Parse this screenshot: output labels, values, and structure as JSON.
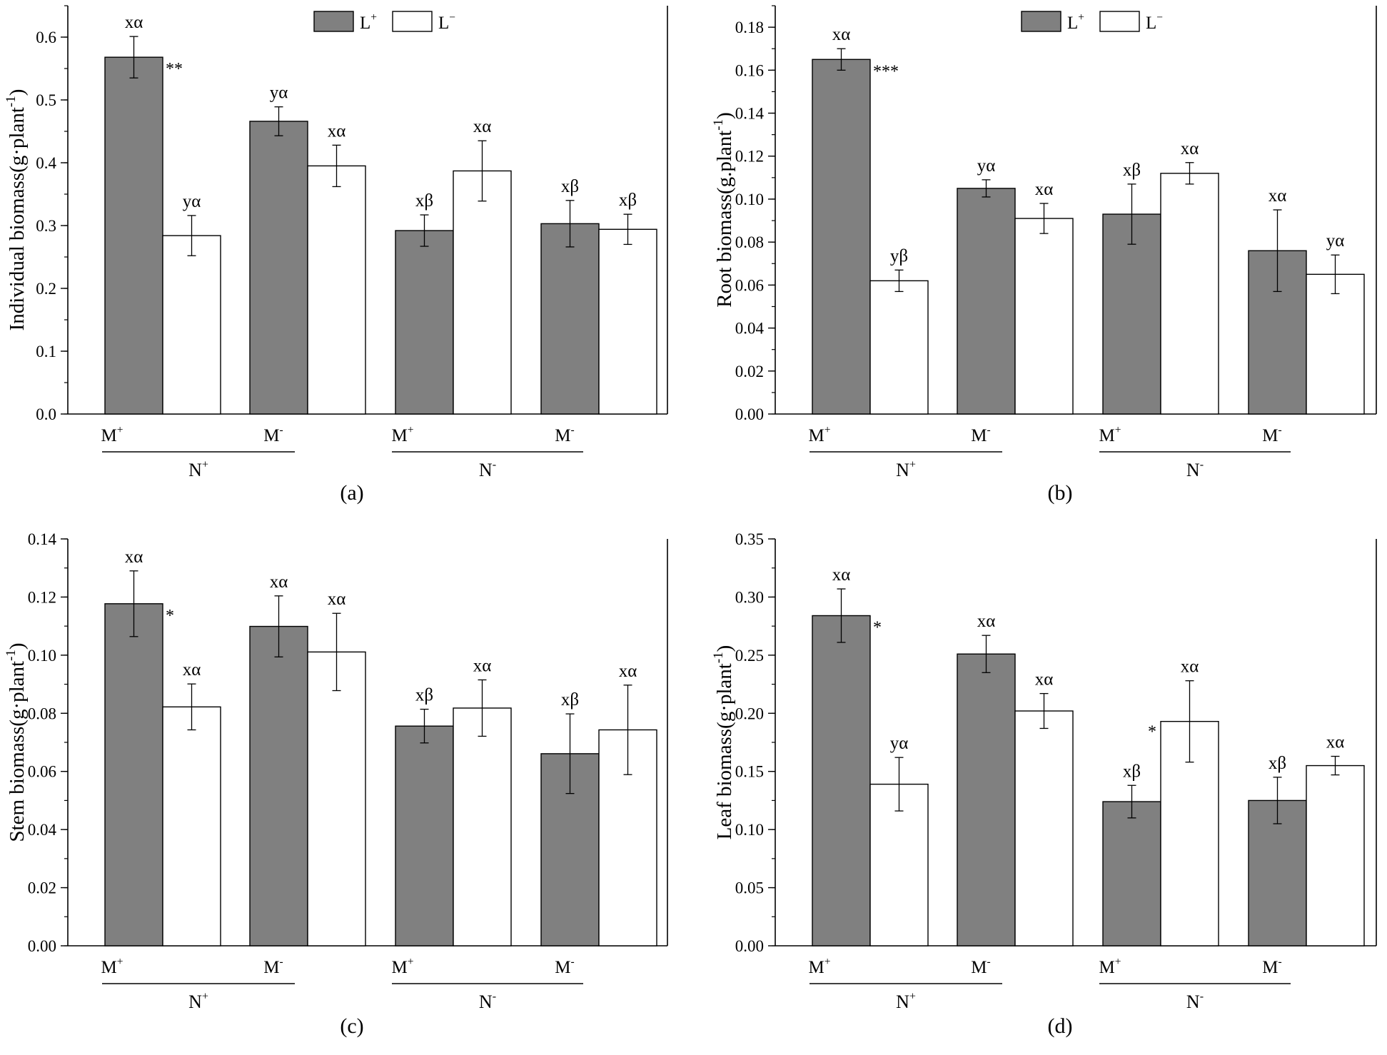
{
  "colors": {
    "lplus": "#808080",
    "lminus": "#ffffff",
    "stroke": "#000000"
  },
  "legend": {
    "lplus": {
      "base": "L",
      "sup": "+"
    },
    "lminus": {
      "base": "L",
      "sup": "−"
    }
  },
  "chart_data": [
    {
      "type": "bar",
      "panel": "a",
      "caption": "(a)",
      "ylabel": "Individual biomass(g·plant",
      "ylabel_sup": "-1",
      "ylabel_close": ")",
      "ylim": [
        0,
        0.65
      ],
      "yticks": [
        0.0,
        0.1,
        0.2,
        0.3,
        0.4,
        0.5,
        0.6
      ],
      "tick_decimals": 1,
      "minor": 0.05,
      "groups": [
        {
          "name": "N+",
          "base": "N",
          "sup": "+"
        },
        {
          "name": "N-",
          "base": "N",
          "sup": "-"
        }
      ],
      "categories": [
        {
          "label": "M+",
          "base": "M",
          "sup": "+",
          "group": "N+"
        },
        {
          "label": "M-",
          "base": "M",
          "sup": "-",
          "group": "N+"
        },
        {
          "label": "M+",
          "base": "M",
          "sup": "+",
          "group": "N-"
        },
        {
          "label": "M-",
          "base": "M",
          "sup": "-",
          "group": "N-"
        }
      ],
      "series": [
        {
          "name": "L+",
          "values": [
            0.568,
            0.466,
            0.292,
            0.303
          ],
          "errors": [
            0.033,
            0.023,
            0.025,
            0.037
          ],
          "labels": [
            "xα",
            "yα",
            "xβ",
            "xβ"
          ],
          "sig": [
            "**",
            "",
            "",
            ""
          ]
        },
        {
          "name": "L-",
          "values": [
            0.284,
            0.395,
            0.387,
            0.294
          ],
          "errors": [
            0.032,
            0.033,
            0.048,
            0.024
          ],
          "labels": [
            "yα",
            "xα",
            "xα",
            "xβ"
          ],
          "sig": [
            "",
            "",
            "",
            ""
          ]
        }
      ]
    },
    {
      "type": "bar",
      "panel": "b",
      "caption": "(b)",
      "ylabel": "Root biomass(g.plant",
      "ylabel_sup": "-1",
      "ylabel_close": ")",
      "ylim": [
        0,
        0.19
      ],
      "yticks": [
        0.0,
        0.02,
        0.04,
        0.06,
        0.08,
        0.1,
        0.12,
        0.14,
        0.16,
        0.18
      ],
      "tick_decimals": 2,
      "minor": 0.01,
      "groups": [
        {
          "name": "N+",
          "base": "N",
          "sup": "+"
        },
        {
          "name": "N-",
          "base": "N",
          "sup": "-"
        }
      ],
      "categories": [
        {
          "label": "M+",
          "base": "M",
          "sup": "+",
          "group": "N+"
        },
        {
          "label": "M-",
          "base": "M",
          "sup": "-",
          "group": "N+"
        },
        {
          "label": "M+",
          "base": "M",
          "sup": "+",
          "group": "N-"
        },
        {
          "label": "M-",
          "base": "M",
          "sup": "-",
          "group": "N-"
        }
      ],
      "series": [
        {
          "name": "L+",
          "values": [
            0.165,
            0.105,
            0.093,
            0.076
          ],
          "errors": [
            0.005,
            0.004,
            0.014,
            0.019
          ],
          "labels": [
            "xα",
            "yα",
            "xβ",
            "xα"
          ],
          "sig": [
            "***",
            "",
            "",
            ""
          ]
        },
        {
          "name": "L-",
          "values": [
            0.062,
            0.091,
            0.112,
            0.065
          ],
          "errors": [
            0.005,
            0.007,
            0.005,
            0.009
          ],
          "labels": [
            "yβ",
            "xα",
            "xα",
            "yα"
          ],
          "sig": [
            "",
            "",
            "",
            ""
          ]
        }
      ]
    },
    {
      "type": "bar",
      "panel": "c",
      "caption": "(c)",
      "ylabel": "Stem biomass(g·plant",
      "ylabel_sup": "-1",
      "ylabel_close": ")",
      "ylim": [
        0,
        0.14
      ],
      "yticks": [
        0.0,
        0.02,
        0.04,
        0.06,
        0.08,
        0.1,
        0.12,
        0.14
      ],
      "tick_decimals": 2,
      "minor": 0.01,
      "groups": [
        {
          "name": "N+",
          "base": "N",
          "sup": "+"
        },
        {
          "name": "N-",
          "base": "N",
          "sup": "-"
        }
      ],
      "categories": [
        {
          "label": "M+",
          "base": "M",
          "sup": "+",
          "group": "N+"
        },
        {
          "label": "M-",
          "base": "M",
          "sup": "-",
          "group": "N+"
        },
        {
          "label": "M+",
          "base": "M",
          "sup": "+",
          "group": "N-"
        },
        {
          "label": "M-",
          "base": "M",
          "sup": "-",
          "group": "N-"
        }
      ],
      "series": [
        {
          "name": "L+",
          "values": [
            0.1177,
            0.1099,
            0.0756,
            0.0661
          ],
          "errors": [
            0.0113,
            0.0105,
            0.0058,
            0.0137
          ],
          "labels": [
            "xα",
            "xα",
            "xβ",
            "xβ"
          ],
          "sig": [
            "*",
            "",
            "",
            ""
          ]
        },
        {
          "name": "L-",
          "values": [
            0.0822,
            0.1011,
            0.0818,
            0.0743
          ],
          "errors": [
            0.0079,
            0.0133,
            0.0097,
            0.0154
          ],
          "labels": [
            "xα",
            "xα",
            "xα",
            "xα"
          ],
          "sig": [
            "",
            "",
            "",
            ""
          ]
        }
      ]
    },
    {
      "type": "bar",
      "panel": "d",
      "caption": "(d)",
      "ylabel": "Leaf biomass(g·plant",
      "ylabel_sup": "-1",
      "ylabel_close": ")",
      "ylim": [
        0,
        0.35
      ],
      "yticks": [
        0.0,
        0.05,
        0.1,
        0.15,
        0.2,
        0.25,
        0.3,
        0.35
      ],
      "tick_decimals": 2,
      "minor": 0.025,
      "groups": [
        {
          "name": "N+",
          "base": "N",
          "sup": "+"
        },
        {
          "name": "N-",
          "base": "N",
          "sup": "-"
        }
      ],
      "categories": [
        {
          "label": "M+",
          "base": "M",
          "sup": "+",
          "group": "N+"
        },
        {
          "label": "M-",
          "base": "M",
          "sup": "-",
          "group": "N+"
        },
        {
          "label": "M+",
          "base": "M",
          "sup": "+",
          "group": "N-"
        },
        {
          "label": "M-",
          "base": "M",
          "sup": "-",
          "group": "N-"
        }
      ],
      "series": [
        {
          "name": "L+",
          "values": [
            0.284,
            0.251,
            0.124,
            0.125
          ],
          "errors": [
            0.023,
            0.016,
            0.014,
            0.02
          ],
          "labels": [
            "xα",
            "xα",
            "xβ",
            "xβ"
          ],
          "sig": [
            "*",
            "",
            "",
            ""
          ]
        },
        {
          "name": "L-",
          "values": [
            0.139,
            0.202,
            0.193,
            0.155
          ],
          "errors": [
            0.023,
            0.015,
            0.035,
            0.008
          ],
          "labels": [
            "yα",
            "xα",
            "xα",
            "xα"
          ],
          "sig": [
            "",
            "",
            "*",
            ""
          ]
        }
      ]
    }
  ]
}
